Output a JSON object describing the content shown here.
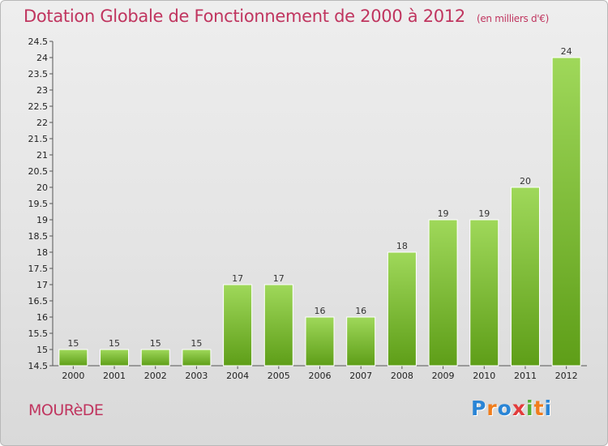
{
  "chart_data": {
    "type": "bar",
    "title": "Dotation Globale de Fonctionnement de 2000 à 2012",
    "subtitle": "(en milliers d'€)",
    "categories": [
      "2000",
      "2001",
      "2002",
      "2003",
      "2004",
      "2005",
      "2006",
      "2007",
      "2008",
      "2009",
      "2010",
      "2011",
      "2012"
    ],
    "values": [
      15,
      15,
      15,
      15,
      17,
      17,
      16,
      16,
      18,
      19,
      19,
      20,
      24
    ],
    "ylim": [
      14.5,
      24.5
    ],
    "yticks": [
      "14.5",
      "15",
      "15.5",
      "16",
      "16.5",
      "17",
      "17.5",
      "18",
      "18.5",
      "19",
      "19.5",
      "20",
      "20.5",
      "21",
      "21.5",
      "22",
      "22.5",
      "23",
      "23.5",
      "24",
      "24.5"
    ],
    "xlabel": "",
    "ylabel": "",
    "grid": false,
    "colors": {
      "bar_top": "#9fd85a",
      "bar_bottom": "#5e9e18",
      "title": "#c0355f"
    }
  },
  "commune": "MOURèDE",
  "brand": {
    "letters": [
      "P",
      "r",
      "o",
      "x",
      "i",
      "t",
      "i"
    ],
    "colors": [
      "#2a85d6",
      "#f07d1c",
      "#2a85d6",
      "#e23c3c",
      "#55b035",
      "#f07d1c",
      "#2a85d6"
    ]
  }
}
